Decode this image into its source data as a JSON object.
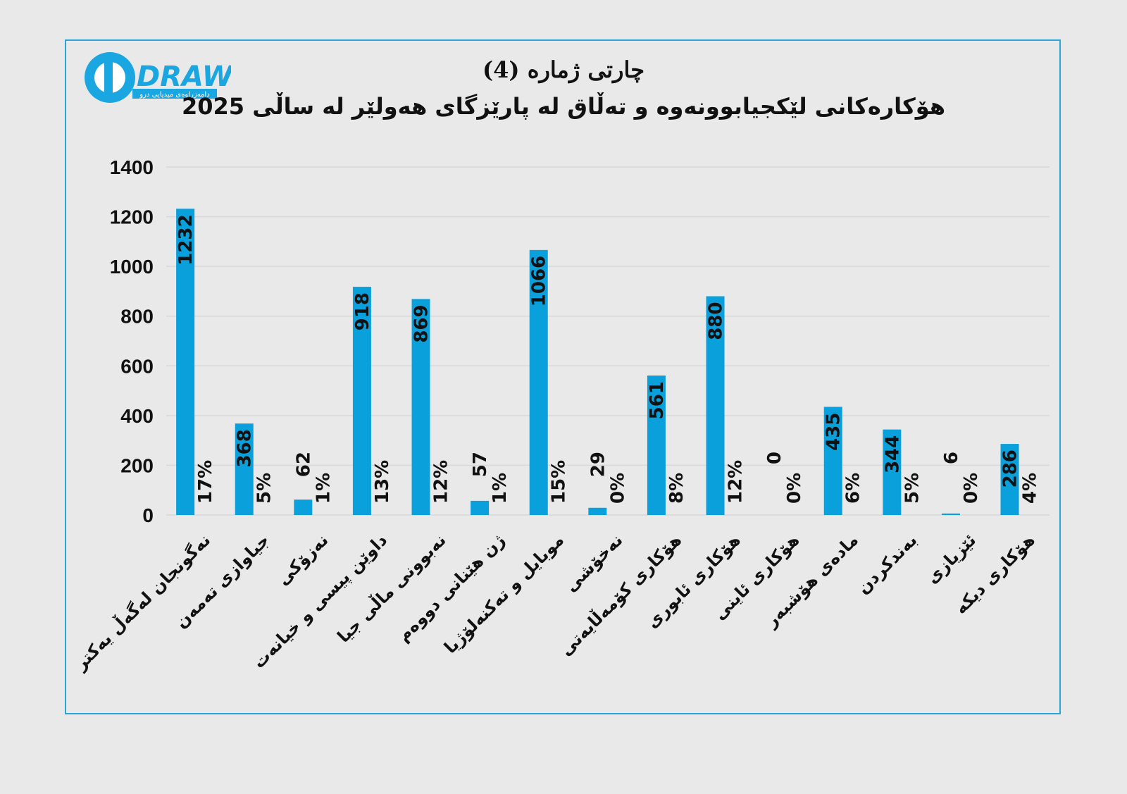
{
  "header": {
    "logo_text": "DRAW",
    "logo_subtext": "دامەزراوەی میدیایی درو",
    "title_line1": "چارتی ژمارە (4)",
    "title_line2": "هۆکارەکانی لێکجیابوونەوە و تەڵاق لە پارێزگای هەولێر لە ساڵی 2025"
  },
  "colors": {
    "bar": "#0aa0dc",
    "frame": "#2aa5d8",
    "background": "#e9e9e9",
    "grid": "#d8d8d8"
  },
  "chart_data": {
    "type": "bar",
    "title": "چارتی ژمارە (4)",
    "subtitle": "هۆکارەکانی لێکجیابوونەوە و تەڵاق لە پارێزگای هەولێر لە ساڵی 2025",
    "ylim": [
      0,
      1400
    ],
    "yticks": [
      0,
      200,
      400,
      600,
      800,
      1000,
      1200,
      1400
    ],
    "grid": true,
    "categories": [
      "نەگونجان لەگەڵ یەکتر",
      "جیاوازی تەمەن",
      "نەزۆکی",
      "داوێن پیسی و خیانەت",
      "نەبوونی ماڵی جیا",
      "ژن هێنانی دووەم",
      "موبایل و تەکنەلۆژیا",
      "نەخۆشی",
      "هۆکاری کۆمەڵایەتی",
      "هۆکاری ئابوری",
      "هۆکاری ئاینی",
      "مادەی هۆشبەر",
      "بەندکردن",
      "ئێزیازی",
      "هۆکاری دیکە"
    ],
    "values": [
      1232,
      368,
      62,
      918,
      869,
      57,
      1066,
      29,
      561,
      880,
      0,
      435,
      344,
      6,
      286
    ],
    "percents": [
      "17%",
      "5%",
      "1%",
      "13%",
      "12%",
      "1%",
      "15%",
      "0%",
      "8%",
      "12%",
      "0%",
      "6%",
      "5%",
      "0%",
      "4%"
    ]
  }
}
